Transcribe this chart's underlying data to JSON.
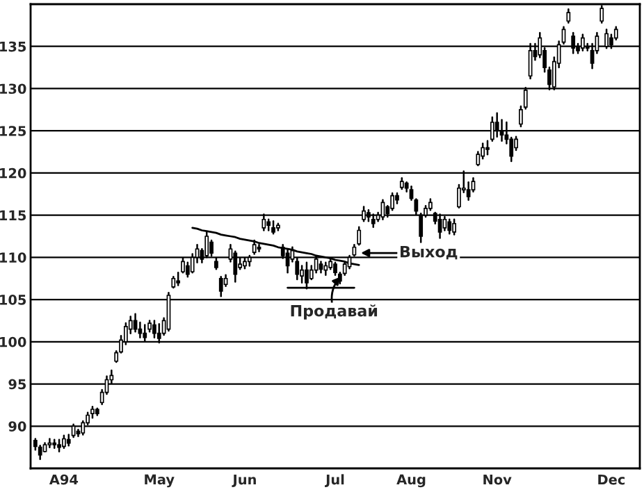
{
  "chart_data": {
    "type": "candlestick",
    "color": "#000000",
    "categories": [
      null,
      null,
      null,
      null,
      null,
      null,
      "A94",
      null,
      null,
      null,
      null,
      null,
      null,
      null,
      null,
      null,
      null,
      null,
      null,
      null,
      null,
      null,
      null,
      null,
      null,
      null,
      "May",
      null,
      null,
      null,
      null,
      null,
      null,
      null,
      null,
      null,
      null,
      null,
      null,
      null,
      null,
      null,
      null,
      null,
      "Jun",
      null,
      null,
      null,
      null,
      null,
      null,
      null,
      null,
      null,
      null,
      null,
      null,
      null,
      null,
      null,
      null,
      null,
      null,
      "Jul",
      null,
      null,
      null,
      null,
      null,
      null,
      null,
      null,
      null,
      null,
      null,
      null,
      null,
      null,
      null,
      "Aug",
      null,
      null,
      null,
      null,
      null,
      null,
      null,
      null,
      null,
      null,
      null,
      null,
      null,
      null,
      null,
      null,
      null,
      "Nov",
      null,
      null,
      null,
      null,
      null,
      null,
      null,
      null,
      null,
      null,
      null,
      null,
      null,
      null,
      null,
      null,
      null,
      null,
      null,
      null,
      null,
      null,
      null,
      "Dec",
      null
    ],
    "ohlc": [
      [
        88.3,
        88.5,
        87.2,
        87.6
      ],
      [
        87.5,
        87.7,
        86.1,
        86.6
      ],
      [
        87,
        88,
        87,
        87.8
      ],
      [
        87.8,
        88.5,
        87.5,
        88
      ],
      [
        88,
        88.4,
        87.4,
        87.8
      ],
      [
        87.8,
        88.4,
        87,
        87.5
      ],
      [
        87.6,
        88.9,
        87.4,
        88.5
      ],
      [
        88.4,
        89,
        87.7,
        88
      ],
      [
        88.9,
        90.2,
        88.7,
        90
      ],
      [
        89.4,
        89.6,
        88.8,
        89.1
      ],
      [
        89.2,
        90.6,
        89,
        90.4
      ],
      [
        90.4,
        91.6,
        90.2,
        91.3
      ],
      [
        91.5,
        92.3,
        91,
        92
      ],
      [
        92,
        92.1,
        91.3,
        91.5
      ],
      [
        92.8,
        94.3,
        92.6,
        94
      ],
      [
        94,
        95.9,
        93.8,
        95.5
      ],
      [
        95.5,
        96.6,
        95.1,
        96
      ],
      [
        97.7,
        98.9,
        97.6,
        98.7
      ],
      [
        98.8,
        100.7,
        98.7,
        100.2
      ],
      [
        100,
        102.2,
        99.7,
        101.8
      ],
      [
        101.5,
        103,
        101,
        102.5
      ],
      [
        102.5,
        103.3,
        101.2,
        101.5
      ],
      [
        101.5,
        102.3,
        100.5,
        101
      ],
      [
        101,
        102,
        100,
        100.5
      ],
      [
        101.5,
        102.5,
        101.2,
        102.2
      ],
      [
        102,
        102.5,
        100.5,
        101
      ],
      [
        101,
        102.1,
        99.9,
        100.4
      ],
      [
        101,
        102.8,
        100.8,
        102.5
      ],
      [
        101.5,
        105.8,
        101.3,
        105.5
      ],
      [
        106.5,
        107.7,
        106.4,
        107.5
      ],
      [
        107.2,
        108.2,
        106.7,
        107
      ],
      [
        108.3,
        109.9,
        108.2,
        109.5
      ],
      [
        109,
        109.4,
        107.7,
        108
      ],
      [
        108.3,
        110.4,
        108.2,
        110
      ],
      [
        110,
        111.5,
        109.4,
        111
      ],
      [
        110.8,
        111,
        109.4,
        109.8
      ],
      [
        110.2,
        113,
        110,
        112.5
      ],
      [
        111.8,
        112,
        110.2,
        110.5
      ],
      [
        109.5,
        109.9,
        108.6,
        108.8
      ],
      [
        107.5,
        107.7,
        105.4,
        106
      ],
      [
        106.8,
        107.9,
        106.6,
        107.5
      ],
      [
        109.8,
        111.5,
        109.5,
        111
      ],
      [
        110.5,
        110.7,
        107.1,
        108
      ],
      [
        108.8,
        109.9,
        108.6,
        109.2
      ],
      [
        109,
        109.9,
        108.7,
        109.5
      ],
      [
        109.5,
        110.2,
        109,
        110
      ],
      [
        110.6,
        112,
        110.4,
        111.5
      ],
      [
        111.2,
        111.5,
        110.7,
        111
      ],
      [
        113.5,
        115.1,
        113.2,
        114.5
      ],
      [
        114.2,
        114.5,
        113.2,
        113.8
      ],
      [
        113.5,
        114.3,
        112.8,
        113
      ],
      [
        113.5,
        114,
        113.2,
        113.8
      ],
      [
        111.2,
        111.5,
        109.9,
        110.2
      ],
      [
        110.5,
        111,
        108.2,
        109
      ],
      [
        109.8,
        111.2,
        109.5,
        110.8
      ],
      [
        109.5,
        109.9,
        107.4,
        108
      ],
      [
        107.8,
        109,
        107,
        108.5
      ],
      [
        108.5,
        109.4,
        106.3,
        107
      ],
      [
        107.5,
        109,
        107.4,
        108.5
      ],
      [
        108.5,
        110.2,
        108.2,
        109.8
      ],
      [
        109.2,
        109.5,
        108.2,
        108.6
      ],
      [
        108.5,
        109.4,
        107.9,
        109
      ],
      [
        108.8,
        109.9,
        108.6,
        109.5
      ],
      [
        109.2,
        109.4,
        107.9,
        108.2
      ],
      [
        108,
        108.2,
        106.9,
        107.2
      ],
      [
        108.1,
        109.5,
        107.9,
        109.2
      ],
      [
        108.9,
        110.2,
        108.7,
        110
      ],
      [
        110.3,
        111.5,
        110.2,
        111.2
      ],
      [
        111.6,
        113.6,
        111.5,
        113.2
      ],
      [
        114.5,
        116,
        114.3,
        115.5
      ],
      [
        115.3,
        115.6,
        114.3,
        114.8
      ],
      [
        114.5,
        115.1,
        113.6,
        114
      ],
      [
        114.5,
        115.3,
        114.3,
        115
      ],
      [
        114.8,
        116.8,
        114.5,
        116.5
      ],
      [
        116,
        116.1,
        114.8,
        115.2
      ],
      [
        115.8,
        117.6,
        115.6,
        117.3
      ],
      [
        117.3,
        117.6,
        116.4,
        116.8
      ],
      [
        118.3,
        119.4,
        118.1,
        119
      ],
      [
        118.8,
        118.9,
        117.8,
        118.2
      ],
      [
        118,
        118.4,
        116.8,
        117
      ],
      [
        116.8,
        116.9,
        115.1,
        115.5
      ],
      [
        115,
        115.2,
        111.8,
        112.5
      ],
      [
        115,
        116.1,
        114.8,
        115.8
      ],
      [
        115.8,
        116.9,
        115.6,
        116.5
      ],
      [
        115.2,
        115.3,
        114,
        114.3
      ],
      [
        114.5,
        115.1,
        112.3,
        113
      ],
      [
        113.5,
        114.8,
        113.2,
        114.5
      ],
      [
        114.2,
        114.5,
        112.8,
        113.2
      ],
      [
        113,
        114.5,
        112.7,
        114
      ],
      [
        116,
        118.6,
        115.9,
        118.2
      ],
      [
        118,
        120.2,
        117.7,
        118.2
      ],
      [
        118,
        118.9,
        116.8,
        117.2
      ],
      [
        118,
        119.4,
        117.8,
        119
      ],
      [
        121,
        122.5,
        120.9,
        122.2
      ],
      [
        122,
        123.5,
        121.7,
        123
      ],
      [
        123,
        123.8,
        122.2,
        122.8
      ],
      [
        124,
        126.6,
        123.8,
        126
      ],
      [
        126,
        127.1,
        124.3,
        125
      ],
      [
        125,
        126.3,
        123.8,
        124.5
      ],
      [
        124.5,
        126,
        123.5,
        124
      ],
      [
        124,
        124.2,
        121.4,
        122
      ],
      [
        123,
        124.3,
        122.7,
        124
      ],
      [
        125.8,
        127.9,
        125.5,
        127.5
      ],
      [
        127.8,
        130.1,
        127.6,
        129.8
      ],
      [
        131.5,
        135.3,
        131.2,
        134.5
      ],
      [
        134.5,
        135.3,
        133.4,
        133.8
      ],
      [
        134,
        136.6,
        133.7,
        136
      ],
      [
        134.5,
        134.8,
        132,
        132.5
      ],
      [
        132.2,
        132.5,
        129.9,
        130.5
      ],
      [
        130.2,
        133.7,
        129.9,
        133.2
      ],
      [
        133,
        135.6,
        132.5,
        135.2
      ],
      [
        135.5,
        137.3,
        135.3,
        137
      ],
      [
        138,
        139.4,
        137.8,
        139
      ],
      [
        136.2,
        136.6,
        134.2,
        134.8
      ],
      [
        135,
        135.3,
        134.2,
        134.5
      ],
      [
        134.8,
        136.4,
        134.5,
        136
      ],
      [
        135,
        135.3,
        134.5,
        134.8
      ],
      [
        134.5,
        135.3,
        132.4,
        133
      ],
      [
        134.5,
        136.6,
        134.2,
        136.2
      ],
      [
        138,
        139.8,
        137.8,
        139.5
      ],
      [
        135,
        137,
        134.8,
        136.5
      ],
      [
        136,
        136.4,
        134.8,
        135.2
      ],
      [
        136,
        137.3,
        135.8,
        137
      ]
    ],
    "series": [
      {
        "type": "line",
        "color": "#000000",
        "values": [
          null,
          null,
          null,
          null,
          null,
          null,
          null,
          null,
          null,
          null,
          null,
          null,
          null,
          null,
          null,
          null,
          null,
          null,
          null,
          null,
          null,
          null,
          null,
          null,
          null,
          null,
          null,
          null,
          null,
          null,
          null,
          null,
          null,
          113.5,
          113.4,
          113.2,
          113.1,
          113.0,
          112.9,
          112.7,
          112.6,
          112.5,
          112.4,
          112.2,
          112.1,
          112.0,
          111.9,
          111.7,
          111.6,
          111.5,
          111.4,
          111.2,
          111.1,
          111.0,
          110.9,
          110.7,
          110.6,
          110.5,
          110.4,
          110.2,
          110.1,
          110.0,
          109.9,
          109.7,
          109.6,
          109.5,
          109.3,
          109.2,
          109.1,
          null,
          null,
          null,
          null,
          null,
          null,
          null,
          null,
          null,
          null,
          null,
          null,
          null,
          null,
          null,
          null,
          null,
          null,
          null,
          null,
          null,
          null,
          null,
          null,
          null,
          null,
          null,
          null,
          null,
          null,
          null,
          null,
          null,
          null,
          null,
          null,
          null,
          null,
          null,
          null,
          null,
          null,
          null,
          null,
          null,
          null,
          null,
          null,
          null,
          null,
          null,
          null,
          null,
          null
        ]
      },
      {
        "type": "line",
        "color": "#000000",
        "values": [
          null,
          null,
          null,
          null,
          null,
          null,
          null,
          null,
          null,
          null,
          null,
          null,
          null,
          null,
          null,
          null,
          null,
          null,
          null,
          null,
          null,
          null,
          null,
          null,
          null,
          null,
          null,
          null,
          null,
          null,
          null,
          null,
          null,
          null,
          null,
          null,
          null,
          null,
          null,
          null,
          null,
          null,
          null,
          null,
          null,
          null,
          null,
          null,
          null,
          null,
          null,
          null,
          null,
          106.4,
          106.4,
          106.4,
          106.4,
          106.4,
          106.4,
          106.4,
          106.4,
          106.4,
          106.4,
          106.4,
          106.4,
          106.4,
          106.4,
          106.4,
          null,
          null,
          null,
          null,
          null,
          null,
          null,
          null,
          null,
          null,
          null,
          null,
          null,
          null,
          null,
          null,
          null,
          null,
          null,
          null,
          null,
          null,
          null,
          null,
          null,
          null,
          null,
          null,
          null,
          null,
          null,
          null,
          null,
          null,
          null,
          null,
          null,
          null,
          null,
          null,
          null,
          null,
          null,
          null,
          null,
          null,
          null,
          null,
          null,
          null,
          null,
          null,
          null,
          null,
          null
        ]
      }
    ],
    "annotations": [
      "Выход",
      "Продавай"
    ],
    "ylim": [
      85,
      140
    ],
    "yticks": [
      90,
      95,
      100,
      105,
      110,
      115,
      120,
      125,
      130,
      135
    ],
    "grid": "y"
  }
}
